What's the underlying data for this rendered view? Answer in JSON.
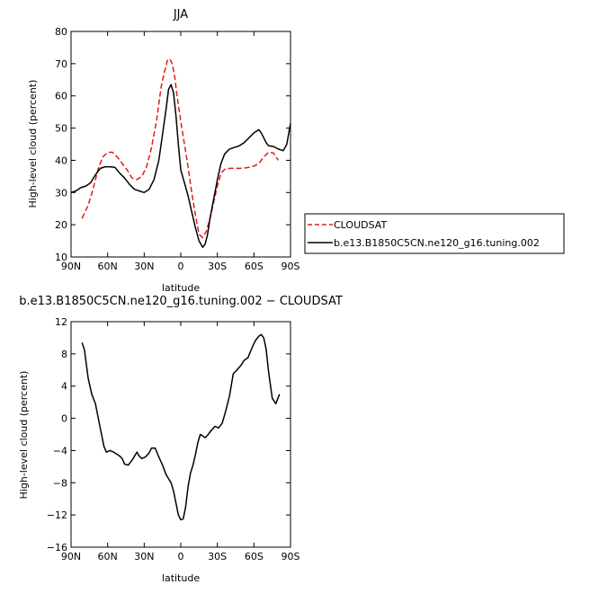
{
  "chart_data": [
    {
      "type": "line",
      "title": "JJA",
      "xlabel": "latitude",
      "ylabel": "High-level cloud (percent)",
      "xlim": [
        -90,
        90
      ],
      "ylim": [
        10,
        80
      ],
      "x_reversed": true,
      "xticks": [
        {
          "value": -90,
          "label": "90N"
        },
        {
          "value": -60,
          "label": "60N"
        },
        {
          "value": -30,
          "label": "30N"
        },
        {
          "value": 0,
          "label": "0"
        },
        {
          "value": 30,
          "label": "30S"
        },
        {
          "value": 60,
          "label": "60S"
        },
        {
          "value": 90,
          "label": "90S"
        }
      ],
      "yticks": [
        10,
        20,
        30,
        40,
        50,
        60,
        70,
        80
      ],
      "legend_position": "outside-right",
      "series": [
        {
          "name": "CLOUDSAT",
          "color": "#e31a1c",
          "dash": true,
          "x": [
            -81,
            -76,
            -72,
            -68,
            -64,
            -60,
            -56,
            -52,
            -48,
            -44,
            -40,
            -36,
            -32,
            -28,
            -24,
            -20,
            -16,
            -13,
            -11,
            -9,
            -7,
            -5,
            -3,
            0,
            3,
            6,
            9,
            12,
            15,
            18,
            21,
            24,
            27,
            30,
            33,
            36,
            40,
            44,
            48,
            52,
            56,
            60,
            64,
            68,
            72,
            76,
            80
          ],
          "y": [
            22,
            26,
            31,
            37,
            41,
            42.5,
            42.5,
            41,
            39,
            37,
            34.5,
            34,
            35,
            38,
            44,
            52,
            63,
            68,
            71,
            71.5,
            70,
            66,
            60,
            52,
            45,
            38,
            30,
            23,
            17,
            16,
            18,
            22,
            27,
            32,
            36,
            37.2,
            37.5,
            37.5,
            37.5,
            37.6,
            37.8,
            38.2,
            39,
            41,
            42.5,
            42.3,
            40
          ]
        },
        {
          "name": "b.e13.B1850C5CN.ne120_g16.tuning.002",
          "color": "#000000",
          "dash": false,
          "x": [
            -90,
            -86,
            -82,
            -78,
            -74,
            -70,
            -66,
            -62,
            -58,
            -54,
            -50,
            -46,
            -42,
            -38,
            -34,
            -30,
            -26,
            -22,
            -18,
            -15,
            -12,
            -10,
            -8,
            -6,
            -4,
            -2,
            0,
            3,
            6,
            9,
            12,
            15,
            18,
            20,
            22,
            24,
            27,
            30,
            33,
            36,
            40,
            44,
            48,
            52,
            56,
            60,
            64,
            66,
            68,
            70,
            72,
            76,
            80,
            84,
            87,
            90
          ],
          "y": [
            30,
            30.5,
            31.5,
            32,
            33,
            35.5,
            37.5,
            38,
            38,
            37.8,
            36,
            34.5,
            32.5,
            31,
            30.5,
            30,
            31,
            34,
            40,
            48,
            56,
            62,
            63.5,
            61,
            54,
            45,
            37,
            33,
            29,
            24,
            19,
            15,
            13,
            14,
            17,
            22,
            28,
            34,
            39,
            42,
            43.5,
            44,
            44.5,
            45.5,
            47,
            48.5,
            49.5,
            48.5,
            47,
            45.5,
            44.5,
            44.3,
            43.5,
            43,
            45,
            51.5
          ]
        }
      ]
    },
    {
      "type": "line",
      "title": "b.e13.B1850C5CN.ne120_g16.tuning.002 − CLOUDSAT",
      "xlabel": "latitude",
      "ylabel": "High-level cloud (percent)",
      "xlim": [
        -90,
        90
      ],
      "ylim": [
        -16,
        12
      ],
      "x_reversed": true,
      "xticks": [
        {
          "value": -90,
          "label": "90N"
        },
        {
          "value": -60,
          "label": "60N"
        },
        {
          "value": -30,
          "label": "30N"
        },
        {
          "value": 0,
          "label": "0"
        },
        {
          "value": 30,
          "label": "30S"
        },
        {
          "value": 60,
          "label": "60S"
        },
        {
          "value": 90,
          "label": "90S"
        }
      ],
      "yticks": [
        -16,
        -12,
        -8,
        -4,
        0,
        4,
        8,
        12
      ],
      "series": [
        {
          "color": "#000000",
          "dash": false,
          "x": [
            -81,
            -79,
            -76,
            -73,
            -70,
            -67,
            -65,
            -63,
            -61,
            -58,
            -55,
            -52,
            -50,
            -48,
            -46,
            -43,
            -40,
            -38,
            -36,
            -34,
            -32,
            -29,
            -26,
            -24,
            -21,
            -18,
            -15,
            -12,
            -10,
            -8,
            -6,
            -4,
            -2,
            0,
            2,
            4,
            6,
            8,
            10,
            12,
            14,
            16,
            18,
            20,
            22,
            25,
            28,
            31,
            34,
            37,
            40,
            43,
            46,
            49,
            52,
            55,
            58,
            61,
            64,
            66,
            68,
            70,
            72,
            75,
            78,
            81
          ],
          "y": [
            9.4,
            8.5,
            5,
            3,
            1.8,
            -0.5,
            -2,
            -3.5,
            -4.2,
            -4.0,
            -4.2,
            -4.5,
            -4.7,
            -5.0,
            -5.7,
            -5.8,
            -5.2,
            -4.7,
            -4.2,
            -4.7,
            -5.0,
            -4.8,
            -4.3,
            -3.7,
            -3.7,
            -4.8,
            -5.8,
            -7.0,
            -7.5,
            -8.0,
            -9.0,
            -10.5,
            -12.0,
            -12.6,
            -12.5,
            -11.0,
            -8.5,
            -6.8,
            -5.8,
            -4.5,
            -3.0,
            -2.0,
            -2.2,
            -2.4,
            -2.1,
            -1.5,
            -1.0,
            -1.2,
            -0.6,
            1.0,
            2.8,
            5.5,
            6.0,
            6.5,
            7.2,
            7.5,
            8.6,
            9.6,
            10.2,
            10.4,
            10.0,
            8.6,
            5.8,
            2.5,
            1.8,
            3.0
          ]
        }
      ]
    }
  ]
}
